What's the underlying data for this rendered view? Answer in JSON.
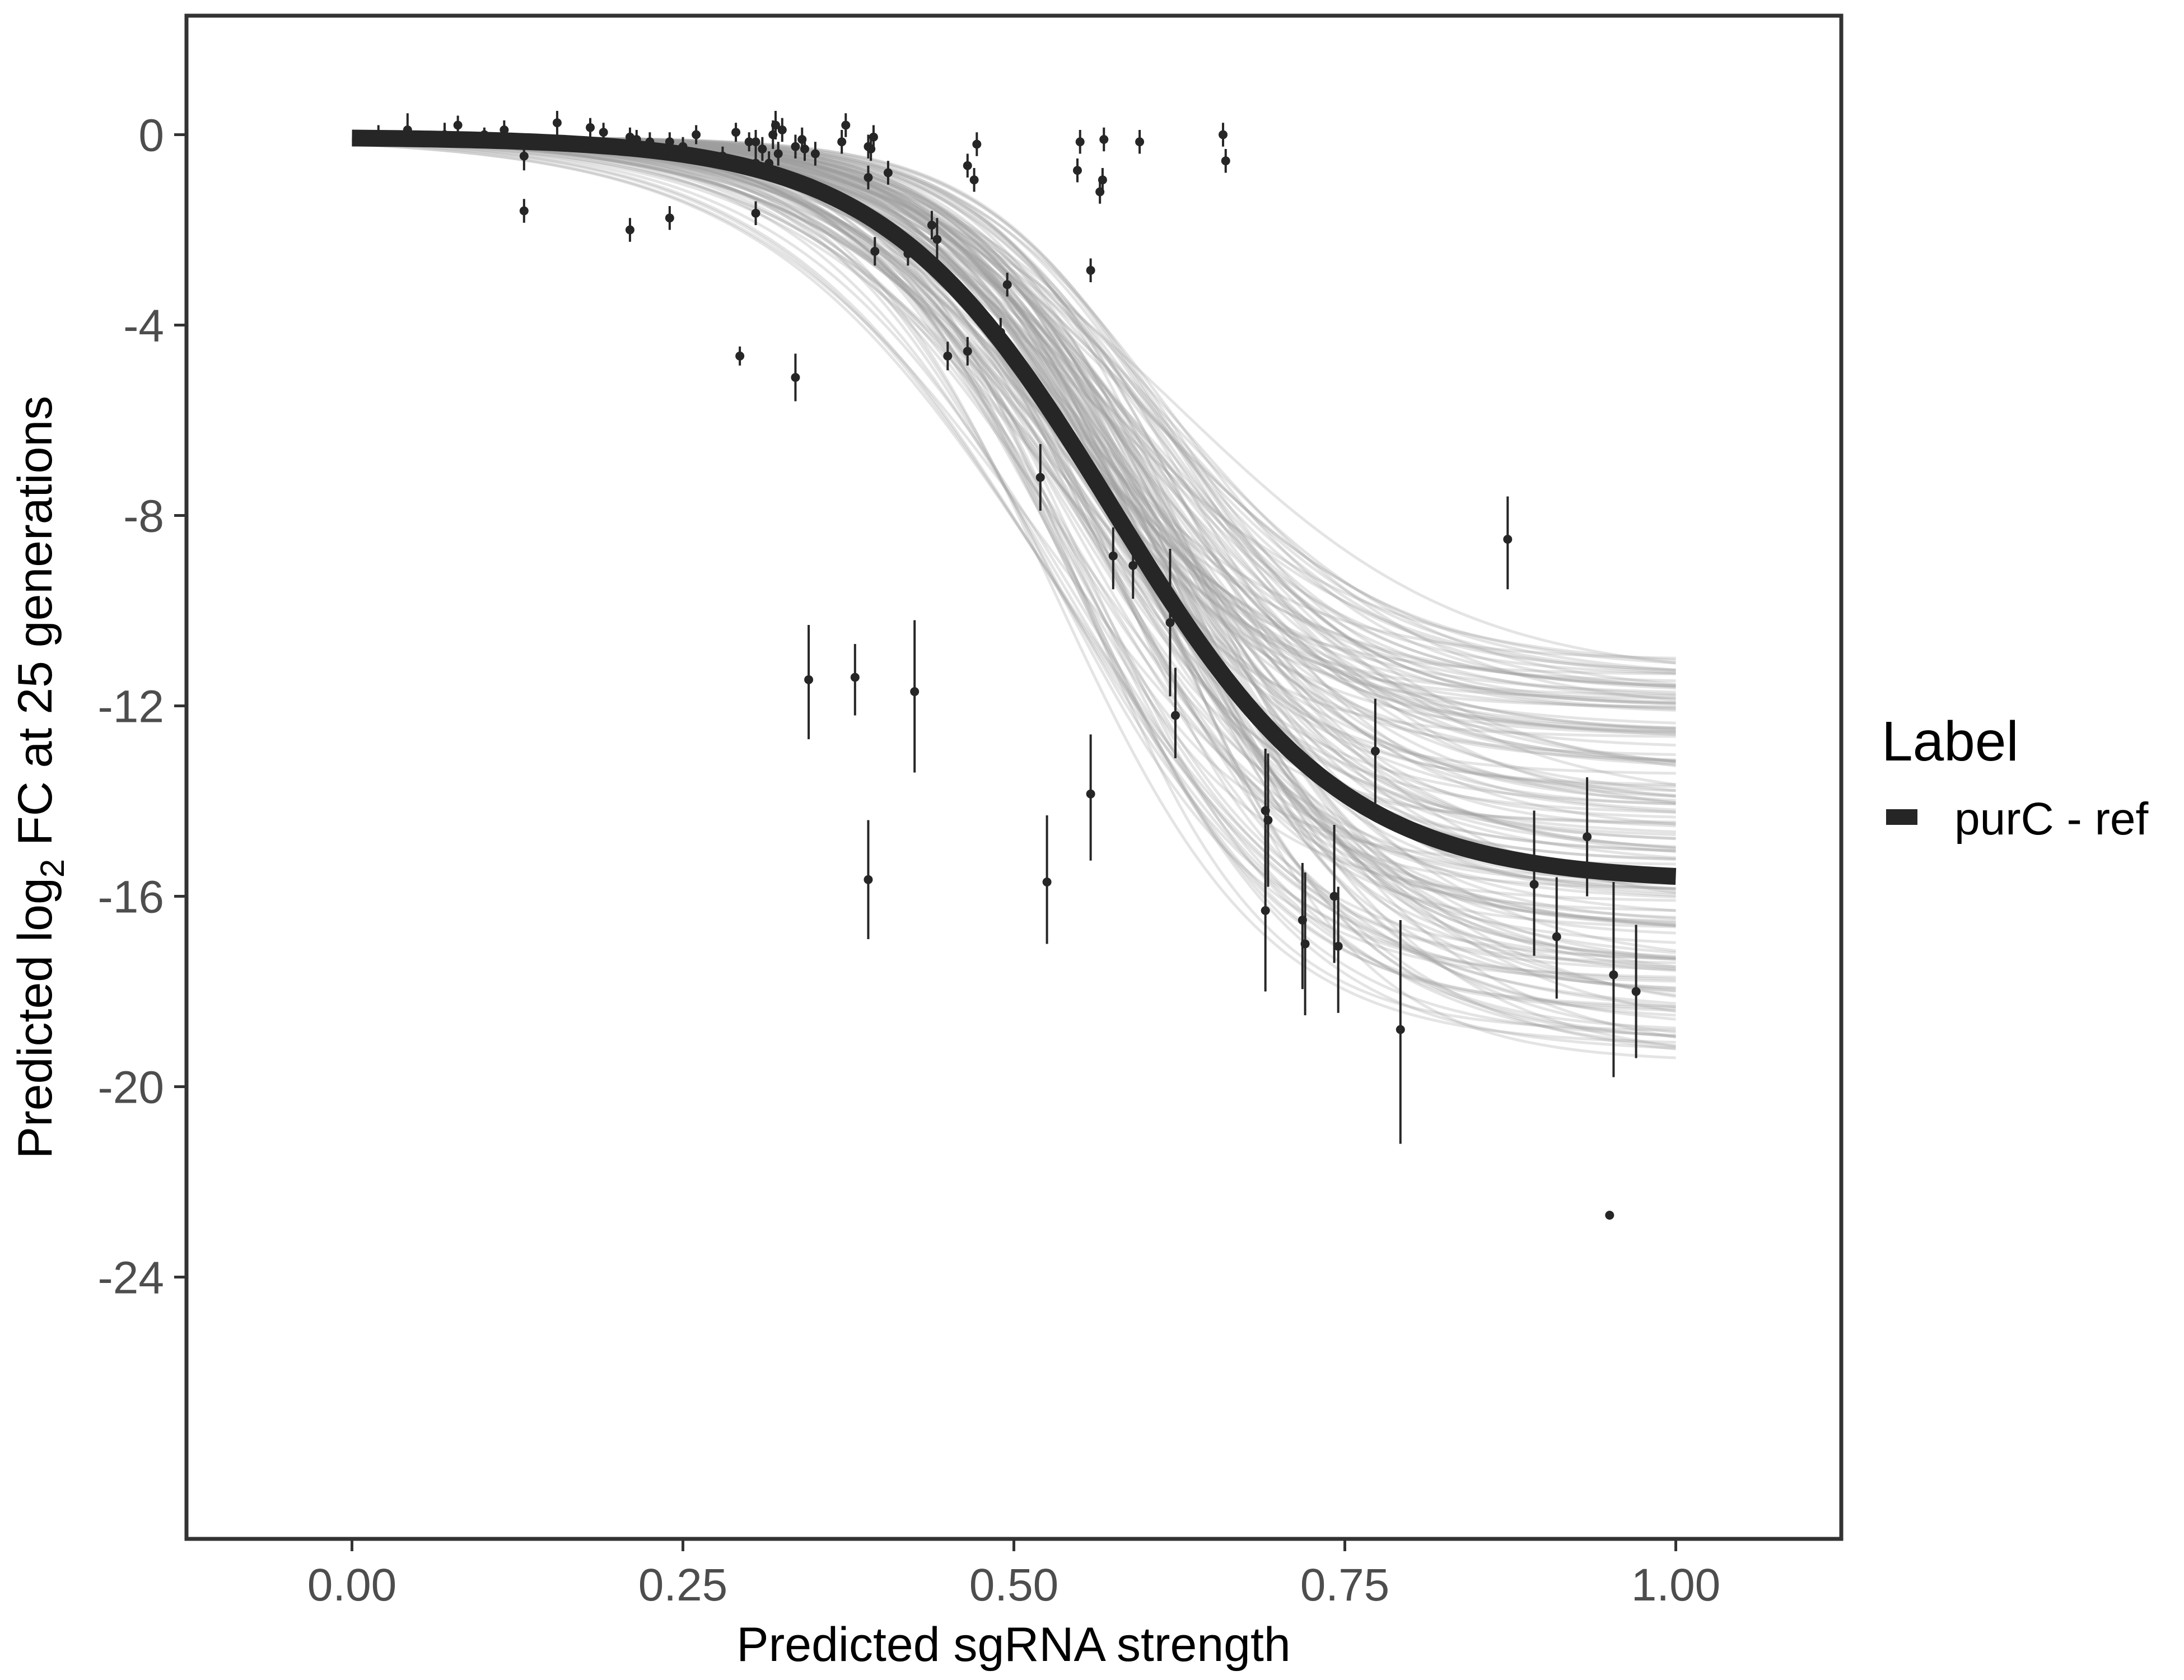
{
  "chart_data": {
    "type": "scatter",
    "xlabel": "Predicted sgRNA strength",
    "ylabel_parts": {
      "pre": "Predicted  log",
      "sub": "2",
      "post": " FC at 25 generations"
    },
    "xlim": [
      -0.125,
      1.125
    ],
    "ylim": [
      -29.5,
      2.5
    ],
    "x_ticks": [
      0.0,
      0.25,
      0.5,
      0.75,
      1.0
    ],
    "x_tick_labels": [
      "0.00",
      "0.25",
      "0.50",
      "0.75",
      "1.00"
    ],
    "y_ticks": [
      0,
      -4,
      -8,
      -12,
      -16,
      -20,
      -24
    ],
    "y_tick_labels": [
      "0",
      "-4",
      "-8",
      "-12",
      "-16",
      "-20",
      "-24"
    ],
    "grid": false,
    "legend": {
      "title": "Label",
      "position": "right",
      "entries": [
        {
          "label": "purC - ref",
          "color": "#262626"
        }
      ]
    },
    "colors": {
      "fit": "#262626",
      "posterior": "#9e9e9e",
      "points": "#262626",
      "panel_border": "#333333"
    },
    "fit_curve": {
      "name": "purC - ref",
      "model": "logistic",
      "lower": -15.7,
      "upper": -0.05,
      "midpoint": 0.575,
      "slope": 11.5
    },
    "posterior_draws": {
      "count": 160,
      "lower_range": [
        -19.5,
        -11.0
      ],
      "midpoint_range": [
        0.52,
        0.63
      ],
      "slope_range": [
        9.0,
        14.5
      ]
    },
    "points": [
      {
        "x": 0.02,
        "y": 0.0,
        "lo": -0.2,
        "hi": 0.2
      },
      {
        "x": 0.042,
        "y": 0.1,
        "lo": -0.2,
        "hi": 0.45
      },
      {
        "x": 0.07,
        "y": 0.0,
        "lo": -0.25,
        "hi": 0.25
      },
      {
        "x": 0.08,
        "y": 0.2,
        "lo": 0.0,
        "hi": 0.4
      },
      {
        "x": 0.1,
        "y": 0.0,
        "lo": -0.15,
        "hi": 0.15
      },
      {
        "x": 0.115,
        "y": 0.1,
        "lo": -0.1,
        "hi": 0.3
      },
      {
        "x": 0.13,
        "y": -0.45,
        "lo": -0.75,
        "hi": -0.15
      },
      {
        "x": 0.13,
        "y": -1.6,
        "lo": -1.85,
        "hi": -1.35
      },
      {
        "x": 0.155,
        "y": 0.25,
        "lo": 0.0,
        "hi": 0.5
      },
      {
        "x": 0.18,
        "y": 0.15,
        "lo": -0.05,
        "hi": 0.35
      },
      {
        "x": 0.19,
        "y": 0.05,
        "lo": -0.15,
        "hi": 0.25
      },
      {
        "x": 0.21,
        "y": -0.05,
        "lo": -0.25,
        "hi": 0.15
      },
      {
        "x": 0.21,
        "y": -2.0,
        "lo": -2.25,
        "hi": -1.75
      },
      {
        "x": 0.215,
        "y": -0.1,
        "lo": -0.3,
        "hi": 0.1
      },
      {
        "x": 0.225,
        "y": -0.15,
        "lo": -0.35,
        "hi": 0.05
      },
      {
        "x": 0.24,
        "y": -0.15,
        "lo": -0.35,
        "hi": 0.05
      },
      {
        "x": 0.24,
        "y": -1.75,
        "lo": -2.0,
        "hi": -1.5
      },
      {
        "x": 0.25,
        "y": -0.25,
        "lo": -0.45,
        "hi": -0.05
      },
      {
        "x": 0.26,
        "y": 0.0,
        "lo": -0.2,
        "hi": 0.2
      },
      {
        "x": 0.28,
        "y": -0.45,
        "lo": -0.65,
        "hi": -0.25
      },
      {
        "x": 0.29,
        "y": 0.05,
        "lo": -0.15,
        "hi": 0.25
      },
      {
        "x": 0.293,
        "y": -4.65,
        "lo": -4.85,
        "hi": -4.45
      },
      {
        "x": 0.3,
        "y": -0.15,
        "lo": -0.35,
        "hi": 0.05
      },
      {
        "x": 0.305,
        "y": -0.15,
        "lo": -0.4,
        "hi": 0.1
      },
      {
        "x": 0.305,
        "y": -0.6,
        "lo": -0.85,
        "hi": -0.35
      },
      {
        "x": 0.305,
        "y": -1.65,
        "lo": -1.9,
        "hi": -1.4
      },
      {
        "x": 0.31,
        "y": -0.3,
        "lo": -0.55,
        "hi": -0.05
      },
      {
        "x": 0.315,
        "y": -0.6,
        "lo": -0.85,
        "hi": -0.35
      },
      {
        "x": 0.318,
        "y": 0.0,
        "lo": -0.3,
        "hi": 0.3
      },
      {
        "x": 0.32,
        "y": 0.2,
        "lo": -0.1,
        "hi": 0.5
      },
      {
        "x": 0.322,
        "y": -0.4,
        "lo": -0.65,
        "hi": -0.15
      },
      {
        "x": 0.325,
        "y": 0.1,
        "lo": -0.15,
        "hi": 0.35
      },
      {
        "x": 0.335,
        "y": -0.25,
        "lo": -0.5,
        "hi": 0.0
      },
      {
        "x": 0.34,
        "y": -0.1,
        "lo": -0.35,
        "hi": 0.15
      },
      {
        "x": 0.342,
        "y": -0.3,
        "lo": -0.55,
        "hi": -0.05
      },
      {
        "x": 0.335,
        "y": -5.1,
        "lo": -5.6,
        "hi": -4.6
      },
      {
        "x": 0.35,
        "y": -0.4,
        "lo": -0.65,
        "hi": -0.15
      },
      {
        "x": 0.345,
        "y": -11.45,
        "lo": -12.7,
        "hi": -10.3
      },
      {
        "x": 0.37,
        "y": -0.15,
        "lo": -0.4,
        "hi": 0.1
      },
      {
        "x": 0.373,
        "y": 0.2,
        "lo": -0.05,
        "hi": 0.45
      },
      {
        "x": 0.38,
        "y": -11.4,
        "lo": -12.2,
        "hi": -10.7
      },
      {
        "x": 0.39,
        "y": -0.25,
        "lo": -0.5,
        "hi": 0.0
      },
      {
        "x": 0.392,
        "y": -0.3,
        "lo": -0.55,
        "hi": -0.05
      },
      {
        "x": 0.394,
        "y": -0.05,
        "lo": -0.3,
        "hi": 0.2
      },
      {
        "x": 0.39,
        "y": -0.9,
        "lo": -1.15,
        "hi": -0.65
      },
      {
        "x": 0.395,
        "y": -2.45,
        "lo": -2.75,
        "hi": -2.15
      },
      {
        "x": 0.39,
        "y": -15.65,
        "lo": -16.9,
        "hi": -14.4
      },
      {
        "x": 0.405,
        "y": -0.8,
        "lo": -1.05,
        "hi": -0.55
      },
      {
        "x": 0.42,
        "y": -2.5,
        "lo": -2.75,
        "hi": -2.25
      },
      {
        "x": 0.425,
        "y": -11.7,
        "lo": -13.4,
        "hi": -10.2
      },
      {
        "x": 0.438,
        "y": -1.9,
        "lo": -2.2,
        "hi": -1.6
      },
      {
        "x": 0.442,
        "y": -2.2,
        "lo": -2.65,
        "hi": -1.75
      },
      {
        "x": 0.45,
        "y": -4.65,
        "lo": -4.95,
        "hi": -4.35
      },
      {
        "x": 0.465,
        "y": -0.65,
        "lo": -0.9,
        "hi": -0.4
      },
      {
        "x": 0.47,
        "y": -0.95,
        "lo": -1.2,
        "hi": -0.7
      },
      {
        "x": 0.472,
        "y": -0.2,
        "lo": -0.45,
        "hi": 0.05
      },
      {
        "x": 0.465,
        "y": -4.55,
        "lo": -4.85,
        "hi": -4.25
      },
      {
        "x": 0.49,
        "y": -4.15,
        "lo": -4.45,
        "hi": -3.85
      },
      {
        "x": 0.495,
        "y": -3.15,
        "lo": -3.4,
        "hi": -2.9
      },
      {
        "x": 0.52,
        "y": -7.2,
        "lo": -7.9,
        "hi": -6.5
      },
      {
        "x": 0.525,
        "y": -15.7,
        "lo": -17.0,
        "hi": -14.3
      },
      {
        "x": 0.548,
        "y": -0.75,
        "lo": -1.0,
        "hi": -0.5
      },
      {
        "x": 0.55,
        "y": -0.15,
        "lo": -0.4,
        "hi": 0.1
      },
      {
        "x": 0.558,
        "y": -2.85,
        "lo": -3.1,
        "hi": -2.6
      },
      {
        "x": 0.558,
        "y": -13.85,
        "lo": -15.25,
        "hi": -12.6
      },
      {
        "x": 0.565,
        "y": -1.2,
        "lo": -1.45,
        "hi": -0.95
      },
      {
        "x": 0.567,
        "y": -0.95,
        "lo": -1.2,
        "hi": -0.7
      },
      {
        "x": 0.568,
        "y": -0.1,
        "lo": -0.35,
        "hi": 0.15
      },
      {
        "x": 0.575,
        "y": -8.85,
        "lo": -9.55,
        "hi": -8.25
      },
      {
        "x": 0.59,
        "y": -9.05,
        "lo": -9.75,
        "hi": -8.35
      },
      {
        "x": 0.595,
        "y": -0.15,
        "lo": -0.4,
        "hi": 0.1
      },
      {
        "x": 0.618,
        "y": -10.25,
        "lo": -11.8,
        "hi": -8.7
      },
      {
        "x": 0.622,
        "y": -12.2,
        "lo": -13.1,
        "hi": -11.2
      },
      {
        "x": 0.658,
        "y": 0.0,
        "lo": -0.25,
        "hi": 0.25
      },
      {
        "x": 0.66,
        "y": -0.55,
        "lo": -0.8,
        "hi": -0.3
      },
      {
        "x": 0.69,
        "y": -14.2,
        "lo": -15.55,
        "hi": -12.9
      },
      {
        "x": 0.692,
        "y": -14.4,
        "lo": -15.8,
        "hi": -13.0
      },
      {
        "x": 0.69,
        "y": -16.3,
        "lo": -18.0,
        "hi": -14.6
      },
      {
        "x": 0.718,
        "y": -16.5,
        "lo": -17.95,
        "hi": -15.3
      },
      {
        "x": 0.72,
        "y": -17.0,
        "lo": -18.5,
        "hi": -15.5
      },
      {
        "x": 0.742,
        "y": -16.0,
        "lo": -17.4,
        "hi": -14.5
      },
      {
        "x": 0.745,
        "y": -17.05,
        "lo": -18.45,
        "hi": -15.8
      },
      {
        "x": 0.773,
        "y": -12.95,
        "lo": -14.05,
        "hi": -11.85
      },
      {
        "x": 0.792,
        "y": -18.8,
        "lo": -21.2,
        "hi": -16.5
      },
      {
        "x": 0.873,
        "y": -8.5,
        "lo": -9.55,
        "hi": -7.6
      },
      {
        "x": 0.893,
        "y": -15.75,
        "lo": -17.25,
        "hi": -14.2
      },
      {
        "x": 0.91,
        "y": -16.85,
        "lo": -18.15,
        "hi": -15.6
      },
      {
        "x": 0.933,
        "y": -14.75,
        "lo": -16.0,
        "hi": -13.5
      },
      {
        "x": 0.95,
        "y": -22.7,
        "lo": -22.75,
        "hi": -22.65
      },
      {
        "x": 0.953,
        "y": -17.65,
        "lo": -19.8,
        "hi": -15.7
      },
      {
        "x": 0.97,
        "y": -18.0,
        "lo": -19.4,
        "hi": -16.6
      }
    ]
  }
}
